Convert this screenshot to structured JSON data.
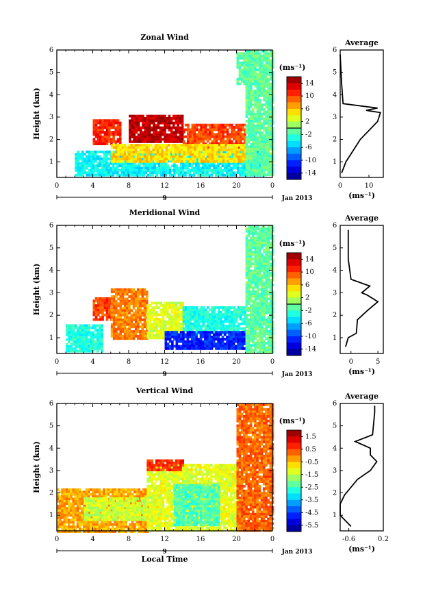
{
  "chart_data": [
    {
      "type": "heatmap",
      "title": "Zonal Wind",
      "xlabel": "",
      "ylabel": "Height (km)",
      "xlim": [
        0,
        24
      ],
      "ylim": [
        0.3,
        6
      ],
      "x_ticks": [
        "0",
        "4",
        "8",
        "12",
        "16",
        "20",
        "0"
      ],
      "y_ticks": [
        "1",
        "2",
        "3",
        "4",
        "5",
        "6"
      ],
      "date_axis": {
        "day": "9",
        "month_label": "Jan 2013"
      },
      "colorbar": {
        "unit": "(ms⁻¹)",
        "min": -16,
        "max": 16,
        "ticks": [
          "14",
          "10",
          "6",
          "2",
          "-2",
          "-6",
          "-10",
          "-14"
        ],
        "zero_line": 0
      },
      "regions": [
        {
          "x": [
            2,
            23
          ],
          "y": [
            0.4,
            1.5
          ],
          "v": -4
        },
        {
          "x": [
            4,
            7
          ],
          "y": [
            1.8,
            2.9
          ],
          "v": 11
        },
        {
          "x": [
            8,
            14
          ],
          "y": [
            1.9,
            3.1
          ],
          "v": 14
        },
        {
          "x": [
            14,
            21
          ],
          "y": [
            1.6,
            2.7
          ],
          "v": 10
        },
        {
          "x": [
            6,
            21
          ],
          "y": [
            1.0,
            1.8
          ],
          "v": 5
        },
        {
          "x": [
            21,
            24
          ],
          "y": [
            0.4,
            6
          ],
          "v": -1
        },
        {
          "x": [
            20,
            22
          ],
          "y": [
            4.5,
            5.9
          ],
          "v": -1
        }
      ],
      "average_profile": {
        "title": "Average",
        "xlabel": "(ms⁻¹)",
        "xlim": [
          0,
          15
        ],
        "x_ticks": [
          "0",
          "10"
        ],
        "y_ticks": [
          "1",
          "2",
          "3",
          "4",
          "5",
          "6"
        ],
        "points": [
          [
            0.5,
            0.5
          ],
          [
            2,
            1.0
          ],
          [
            5,
            1.6
          ],
          [
            7,
            2.0
          ],
          [
            10,
            2.4
          ],
          [
            13,
            2.8
          ],
          [
            14,
            3.2
          ],
          [
            9,
            3.3
          ],
          [
            13,
            3.4
          ],
          [
            1,
            3.6
          ],
          [
            0.5,
            4.5
          ],
          [
            0,
            5.8
          ]
        ]
      }
    },
    {
      "type": "heatmap",
      "title": "Meridional Wind",
      "xlabel": "",
      "ylabel": "Height (km)",
      "xlim": [
        0,
        24
      ],
      "ylim": [
        0.3,
        6
      ],
      "x_ticks": [
        "0",
        "4",
        "8",
        "12",
        "16",
        "20",
        "0"
      ],
      "y_ticks": [
        "1",
        "2",
        "3",
        "4",
        "5",
        "6"
      ],
      "date_axis": {
        "day": "9",
        "month_label": "Jan 2013"
      },
      "colorbar": {
        "unit": "(ms⁻¹)",
        "min": -16,
        "max": 16,
        "ticks": [
          "14",
          "10",
          "6",
          "2",
          "-2",
          "-6",
          "-10",
          "-14"
        ],
        "zero_line": 0
      },
      "regions": [
        {
          "x": [
            1,
            5
          ],
          "y": [
            0.4,
            1.6
          ],
          "v": -3
        },
        {
          "x": [
            4,
            6
          ],
          "y": [
            1.8,
            2.8
          ],
          "v": 10
        },
        {
          "x": [
            6,
            10
          ],
          "y": [
            1.0,
            3.2
          ],
          "v": 8
        },
        {
          "x": [
            10,
            14
          ],
          "y": [
            1.0,
            2.6
          ],
          "v": 3
        },
        {
          "x": [
            14,
            21
          ],
          "y": [
            1.2,
            2.4
          ],
          "v": -3
        },
        {
          "x": [
            12,
            21
          ],
          "y": [
            0.5,
            1.3
          ],
          "v": -11
        },
        {
          "x": [
            21,
            24
          ],
          "y": [
            0.4,
            6
          ],
          "v": -1
        }
      ],
      "average_profile": {
        "title": "Average",
        "xlabel": "(ms⁻¹)",
        "xlim": [
          -2,
          6
        ],
        "x_ticks": [
          "0",
          "5"
        ],
        "y_ticks": [
          "1",
          "2",
          "3",
          "4",
          "5",
          "6"
        ],
        "points": [
          [
            -1,
            0.6
          ],
          [
            -0.5,
            1.0
          ],
          [
            1,
            1.2
          ],
          [
            1.2,
            1.8
          ],
          [
            3,
            2.2
          ],
          [
            5,
            2.6
          ],
          [
            3,
            2.9
          ],
          [
            2,
            3.0
          ],
          [
            3.5,
            3.3
          ],
          [
            0,
            3.6
          ],
          [
            -0.5,
            4.5
          ],
          [
            -0.5,
            5.8
          ]
        ]
      }
    },
    {
      "type": "heatmap",
      "title": "Vertical Wind",
      "xlabel": "Local Time",
      "ylabel": "Height (km)",
      "xlim": [
        0,
        24
      ],
      "ylim": [
        0.3,
        6
      ],
      "x_ticks": [
        "0",
        "4",
        "8",
        "12",
        "16",
        "20",
        "0"
      ],
      "y_ticks": [
        "1",
        "2",
        "3",
        "4",
        "5",
        "6"
      ],
      "date_axis": {
        "day": "9",
        "month_label": "Jan 2013"
      },
      "colorbar": {
        "unit": "(ms⁻¹)",
        "min": -6,
        "max": 2,
        "ticks": [
          "1.5",
          "0.5",
          "-0.5",
          "-1.5",
          "-2.5",
          "-3.5",
          "-4.5",
          "-5.5"
        ],
        "zero_line": null
      },
      "regions": [
        {
          "x": [
            0,
            10
          ],
          "y": [
            0.3,
            2.2
          ],
          "v": -0.3
        },
        {
          "x": [
            3,
            10
          ],
          "y": [
            0.8,
            1.8
          ],
          "v": -1.4
        },
        {
          "x": [
            10,
            20
          ],
          "y": [
            0.3,
            3.3
          ],
          "v": -1.2
        },
        {
          "x": [
            13,
            18
          ],
          "y": [
            0.6,
            2.4
          ],
          "v": -2.4
        },
        {
          "x": [
            10,
            14
          ],
          "y": [
            3.0,
            3.5
          ],
          "v": 0.6
        },
        {
          "x": [
            20,
            24
          ],
          "y": [
            0.3,
            6
          ],
          "v": 0.2
        }
      ],
      "average_profile": {
        "title": "Average",
        "xlabel": "(ms⁻¹)",
        "xlim": [
          -0.8,
          0.2
        ],
        "x_ticks": [
          "-0.6",
          "0.2"
        ],
        "y_ticks": [
          "1",
          "2",
          "3",
          "4",
          "5",
          "6"
        ],
        "points": [
          [
            -0.55,
            0.5
          ],
          [
            -0.8,
            1.0
          ],
          [
            -0.8,
            1.5
          ],
          [
            -0.7,
            1.9
          ],
          [
            -0.4,
            2.6
          ],
          [
            -0.1,
            3.0
          ],
          [
            0.05,
            3.4
          ],
          [
            -0.1,
            3.7
          ],
          [
            -0.1,
            4.0
          ],
          [
            -0.45,
            4.3
          ],
          [
            -0.05,
            4.6
          ],
          [
            0.0,
            5.6
          ],
          [
            0.0,
            5.9
          ]
        ]
      }
    }
  ]
}
